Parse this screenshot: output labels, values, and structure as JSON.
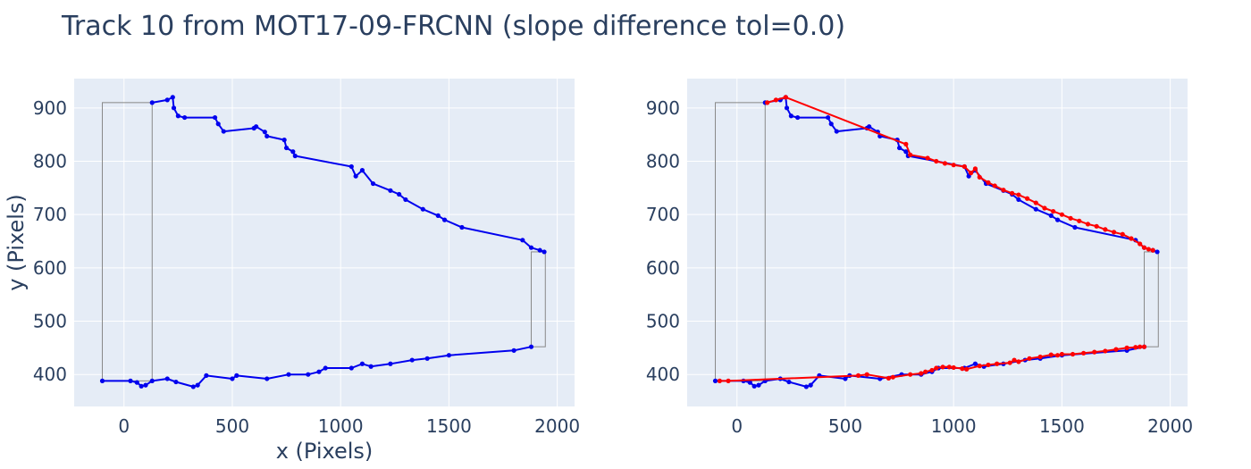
{
  "title": "Track 10 from MOT17-09-FRCNN (slope difference tol=0.0)",
  "colors": {
    "track": "#0000ee",
    "correction": "#ff0000",
    "box": "#888888",
    "plot_bg": "#e5ecf6",
    "text": "#2a3f5f"
  },
  "chart_data": [
    {
      "type": "scatter",
      "xlabel": "x (Pixels)",
      "ylabel": "y (Pixels)",
      "xlim": [
        -230,
        2080
      ],
      "ylim": [
        340,
        955
      ],
      "xticks": [
        "0",
        "500",
        "1000",
        "1500",
        "2000"
      ],
      "yticks": [
        "400",
        "500",
        "600",
        "700",
        "800",
        "900"
      ],
      "grid": true,
      "legend": "none",
      "boxes": [
        {
          "x": [
            -100,
            130
          ],
          "y": [
            388,
            910
          ]
        },
        {
          "x": [
            1880,
            1945
          ],
          "y": [
            452,
            630
          ]
        }
      ],
      "series": [
        {
          "color": "track",
          "x": [
            130,
            200,
            225,
            230,
            250,
            280,
            420,
            435,
            460,
            600,
            610,
            650,
            660,
            740,
            750,
            780,
            790,
            1050,
            1070,
            1100,
            1150,
            1230,
            1270,
            1300,
            1380,
            1450,
            1480,
            1560,
            1840,
            1880,
            1920,
            1940
          ],
          "y": [
            910,
            915,
            920,
            900,
            885,
            882,
            882,
            870,
            856,
            862,
            865,
            855,
            847,
            840,
            825,
            818,
            810,
            790,
            772,
            783,
            758,
            745,
            738,
            728,
            710,
            698,
            690,
            676,
            652,
            638,
            633,
            630
          ]
        },
        {
          "color": "track",
          "x": [
            -100,
            30,
            60,
            80,
            100,
            130,
            200,
            240,
            320,
            340,
            380,
            500,
            520,
            660,
            760,
            850,
            900,
            930,
            1050,
            1100,
            1140,
            1230,
            1330,
            1400,
            1500,
            1800,
            1880
          ],
          "y": [
            388,
            388,
            385,
            378,
            380,
            388,
            392,
            386,
            377,
            380,
            398,
            392,
            398,
            392,
            400,
            400,
            405,
            412,
            412,
            420,
            415,
            420,
            427,
            430,
            436,
            445,
            452
          ]
        }
      ]
    },
    {
      "type": "scatter",
      "xlabel": "",
      "ylabel": "",
      "xlim": [
        -230,
        2080
      ],
      "ylim": [
        340,
        955
      ],
      "xticks": [
        "0",
        "500",
        "1000",
        "1500",
        "2000"
      ],
      "yticks": [
        "400",
        "500",
        "600",
        "700",
        "800",
        "900"
      ],
      "grid": true,
      "legend": "none",
      "boxes": [
        {
          "x": [
            -100,
            130
          ],
          "y": [
            388,
            910
          ]
        },
        {
          "x": [
            1880,
            1945
          ],
          "y": [
            452,
            630
          ]
        }
      ],
      "series": [
        {
          "color": "track",
          "x": [
            130,
            200,
            225,
            230,
            250,
            280,
            420,
            435,
            460,
            600,
            610,
            650,
            660,
            740,
            750,
            780,
            790,
            1050,
            1070,
            1100,
            1150,
            1230,
            1270,
            1300,
            1380,
            1450,
            1480,
            1560,
            1840,
            1880,
            1920,
            1940
          ],
          "y": [
            910,
            915,
            920,
            900,
            885,
            882,
            882,
            870,
            856,
            862,
            865,
            855,
            847,
            840,
            825,
            818,
            810,
            790,
            772,
            783,
            758,
            745,
            738,
            728,
            710,
            698,
            690,
            676,
            652,
            638,
            633,
            630
          ]
        },
        {
          "color": "track",
          "x": [
            -100,
            30,
            60,
            80,
            100,
            130,
            200,
            240,
            320,
            340,
            380,
            500,
            520,
            660,
            760,
            850,
            900,
            930,
            1050,
            1100,
            1140,
            1230,
            1330,
            1400,
            1500,
            1800,
            1880
          ],
          "y": [
            388,
            388,
            385,
            378,
            380,
            388,
            392,
            386,
            377,
            380,
            398,
            392,
            398,
            392,
            400,
            400,
            405,
            412,
            412,
            420,
            415,
            420,
            427,
            430,
            436,
            445,
            452
          ]
        },
        {
          "color": "correction",
          "x": [
            140,
            180,
            225,
            780,
            800,
            880,
            920,
            960,
            1000,
            1050,
            1080,
            1100,
            1120,
            1160,
            1190,
            1230,
            1270,
            1300,
            1340,
            1380,
            1420,
            1460,
            1500,
            1540,
            1580,
            1620,
            1660,
            1700,
            1740,
            1780,
            1820,
            1860,
            1880,
            1900,
            1920
          ],
          "y": [
            910,
            915,
            920,
            832,
            812,
            806,
            800,
            796,
            793,
            790,
            778,
            786,
            770,
            760,
            754,
            746,
            740,
            737,
            730,
            722,
            712,
            706,
            700,
            693,
            688,
            682,
            678,
            672,
            667,
            663,
            655,
            645,
            638,
            635,
            633
          ]
        },
        {
          "color": "correction",
          "x": [
            -80,
            -40,
            560,
            600,
            700,
            720,
            800,
            850,
            870,
            900,
            920,
            950,
            980,
            1000,
            1040,
            1060,
            1120,
            1160,
            1200,
            1260,
            1280,
            1300,
            1350,
            1400,
            1450,
            1480,
            1500,
            1550,
            1600,
            1650,
            1700,
            1750,
            1800,
            1840,
            1860,
            1880
          ],
          "y": [
            388,
            388,
            398,
            400,
            393,
            395,
            400,
            402,
            405,
            408,
            412,
            414,
            414,
            413,
            411,
            410,
            416,
            418,
            420,
            422,
            427,
            424,
            430,
            433,
            437,
            436,
            438,
            438,
            440,
            442,
            444,
            447,
            450,
            451,
            452,
            452
          ]
        }
      ]
    }
  ]
}
